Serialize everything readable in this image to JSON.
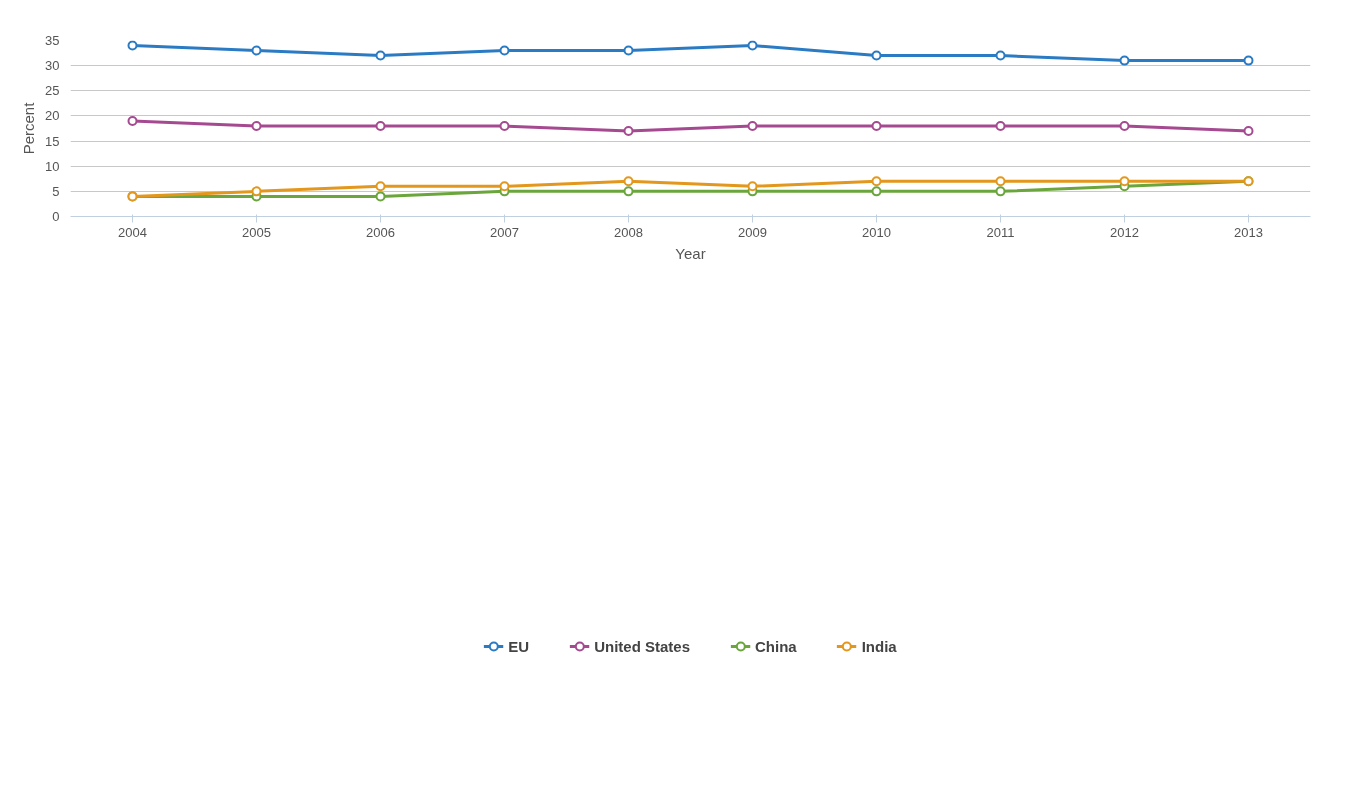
{
  "chart_data": {
    "type": "line",
    "xlabel": "Year",
    "ylabel": "Percent",
    "categories": [
      "2004",
      "2005",
      "2006",
      "2007",
      "2008",
      "2009",
      "2010",
      "2011",
      "2012",
      "2013"
    ],
    "series": [
      {
        "name": "EU",
        "color": "#2b7bc4",
        "values": [
          34,
          33,
          32,
          33,
          33,
          34,
          32,
          32,
          31,
          31
        ]
      },
      {
        "name": "United States",
        "color": "#a54a90",
        "values": [
          19,
          18,
          18,
          18,
          17,
          18,
          18,
          18,
          18,
          17
        ]
      },
      {
        "name": "China",
        "color": "#6aa63c",
        "values": [
          4,
          4,
          4,
          5,
          5,
          5,
          5,
          5,
          6,
          7
        ]
      },
      {
        "name": "India",
        "color": "#e3971c",
        "values": [
          4,
          5,
          6,
          6,
          7,
          6,
          7,
          7,
          7,
          7
        ]
      }
    ],
    "ylim": [
      0,
      35
    ],
    "yticks": [
      0,
      5,
      10,
      15,
      20,
      25,
      30,
      35
    ],
    "grid": "y",
    "legend": "bottom",
    "marker": "circle",
    "line_style": "solid"
  }
}
